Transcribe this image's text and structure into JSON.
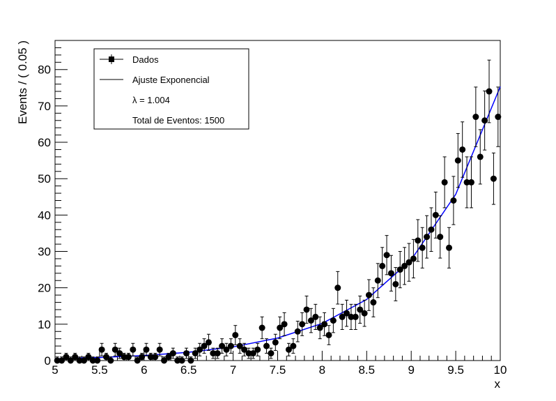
{
  "chart_data": {
    "type": "scatter",
    "xlabel": "x",
    "ylabel": "Events / ( 0.05 )",
    "xlim": [
      5,
      10
    ],
    "ylim": [
      0,
      88
    ],
    "xticks": [
      "5",
      "5.5",
      "6",
      "6.5",
      "7",
      "7.5",
      "8",
      "8.5",
      "9",
      "9.5",
      "10"
    ],
    "yticks": [
      "0",
      "10",
      "20",
      "30",
      "40",
      "50",
      "60",
      "70",
      "80"
    ],
    "grid": false,
    "colors": {
      "data": "#000000",
      "fit": "#0000ff",
      "frame": "#000000"
    },
    "legend": {
      "placement": "top-left",
      "entries": [
        {
          "label": "Dados",
          "marker": "square-with-line"
        },
        {
          "label": "Ajuste Exponencial",
          "marker": "line"
        },
        {
          "label": "λ = 1.004",
          "marker": "none"
        },
        {
          "label": "Total de Eventos: 1500",
          "marker": "none"
        }
      ]
    },
    "series": [
      {
        "name": "Dados",
        "kind": "points-with-error-bars",
        "x": [
          5.025,
          5.075,
          5.125,
          5.175,
          5.225,
          5.275,
          5.325,
          5.375,
          5.425,
          5.475,
          5.525,
          5.575,
          5.625,
          5.675,
          5.725,
          5.775,
          5.825,
          5.875,
          5.925,
          5.975,
          6.025,
          6.075,
          6.125,
          6.175,
          6.225,
          6.275,
          6.325,
          6.375,
          6.425,
          6.475,
          6.525,
          6.575,
          6.625,
          6.675,
          6.725,
          6.775,
          6.825,
          6.875,
          6.925,
          6.975,
          7.025,
          7.075,
          7.125,
          7.175,
          7.225,
          7.275,
          7.325,
          7.375,
          7.425,
          7.475,
          7.525,
          7.575,
          7.625,
          7.675,
          7.725,
          7.775,
          7.825,
          7.875,
          7.925,
          7.975,
          8.025,
          8.075,
          8.125,
          8.175,
          8.225,
          8.275,
          8.325,
          8.375,
          8.425,
          8.475,
          8.525,
          8.575,
          8.625,
          8.675,
          8.725,
          8.775,
          8.825,
          8.875,
          8.925,
          8.975,
          9.025,
          9.075,
          9.125,
          9.175,
          9.225,
          9.275,
          9.325,
          9.375,
          9.425,
          9.475,
          9.525,
          9.575,
          9.625,
          9.675,
          9.725,
          9.775,
          9.825,
          9.875,
          9.925,
          9.975
        ],
        "y": [
          0,
          0,
          1,
          0,
          1,
          0,
          0,
          1,
          0,
          0,
          3,
          1,
          0,
          3,
          2,
          1,
          1,
          3,
          0,
          1,
          3,
          1,
          1,
          3,
          0,
          1,
          2,
          0,
          0,
          2,
          0,
          2,
          3,
          4,
          5,
          2,
          2,
          4,
          3,
          4,
          7,
          4,
          3,
          2,
          2,
          3,
          9,
          4,
          2,
          5,
          9,
          10,
          3,
          4,
          8,
          10,
          14,
          11,
          12,
          9,
          10,
          7,
          11,
          20,
          12,
          13,
          12,
          12,
          14,
          13,
          18,
          16,
          22,
          26,
          29,
          24,
          21,
          25,
          26,
          27,
          28,
          33,
          31,
          34,
          36,
          40,
          34,
          49,
          31,
          44,
          55,
          58,
          49,
          49,
          67,
          56,
          66,
          74,
          50,
          67
        ]
      },
      {
        "name": "Ajuste Exponencial",
        "kind": "curve",
        "x": [
          5.0,
          5.5,
          6.0,
          6.5,
          7.0,
          7.5,
          8.0,
          8.5,
          9.0,
          9.5,
          10.0
        ],
        "y": [
          0.51,
          0.84,
          1.38,
          2.28,
          3.75,
          6.19,
          10.2,
          16.8,
          27.7,
          45.7,
          75.3
        ]
      }
    ]
  }
}
